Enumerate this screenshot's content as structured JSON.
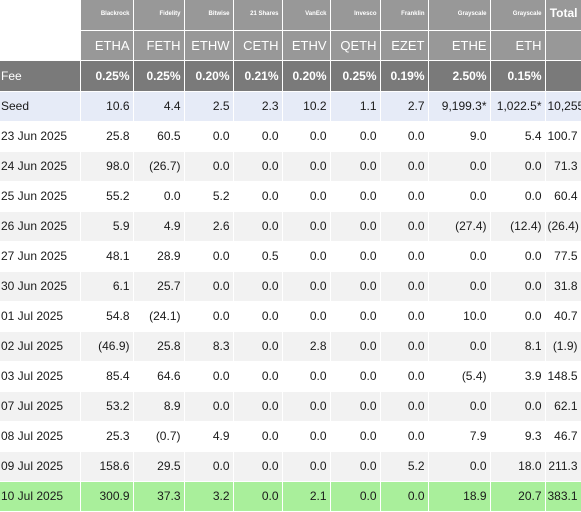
{
  "issuers": [
    "Blackrock",
    "Fidelity",
    "Bitwise",
    "21 Shares",
    "VanEck",
    "Invesco",
    "Franklin",
    "Grayscale",
    "Grayscale"
  ],
  "total_label": "Total",
  "tickers": [
    "ETHA",
    "FETH",
    "ETHW",
    "CETH",
    "ETHV",
    "QETH",
    "EZET",
    "ETHE",
    "ETH"
  ],
  "fee": {
    "label": "Fee",
    "values": [
      "0.25%",
      "0.25%",
      "0.20%",
      "0.21%",
      "0.20%",
      "0.25%",
      "0.19%",
      "2.50%",
      "0.15%"
    ]
  },
  "rows": [
    {
      "date": "Seed",
      "cells": [
        "10.6",
        "4.4",
        "2.5",
        "2.3",
        "10.2",
        "1.1",
        "2.7",
        "9,199.3*",
        "1,022.5*",
        "10,255"
      ]
    },
    {
      "date": "23 Jun 2025",
      "cells": [
        "25.8",
        "60.5",
        "0.0",
        "0.0",
        "0.0",
        "0.0",
        "0.0",
        "9.0",
        "5.4",
        "100.7"
      ]
    },
    {
      "date": "24 Jun 2025",
      "cells": [
        "98.0",
        "(26.7)",
        "0.0",
        "0.0",
        "0.0",
        "0.0",
        "0.0",
        "0.0",
        "0.0",
        "71.3"
      ]
    },
    {
      "date": "25 Jun 2025",
      "cells": [
        "55.2",
        "0.0",
        "5.2",
        "0.0",
        "0.0",
        "0.0",
        "0.0",
        "0.0",
        "0.0",
        "60.4"
      ]
    },
    {
      "date": "26 Jun 2025",
      "cells": [
        "5.9",
        "4.9",
        "2.6",
        "0.0",
        "0.0",
        "0.0",
        "0.0",
        "(27.4)",
        "(12.4)",
        "(26.4)"
      ]
    },
    {
      "date": "27 Jun 2025",
      "cells": [
        "48.1",
        "28.9",
        "0.0",
        "0.5",
        "0.0",
        "0.0",
        "0.0",
        "0.0",
        "0.0",
        "77.5"
      ]
    },
    {
      "date": "30 Jun 2025",
      "cells": [
        "6.1",
        "25.7",
        "0.0",
        "0.0",
        "0.0",
        "0.0",
        "0.0",
        "0.0",
        "0.0",
        "31.8"
      ]
    },
    {
      "date": "01 Jul 2025",
      "cells": [
        "54.8",
        "(24.1)",
        "0.0",
        "0.0",
        "0.0",
        "0.0",
        "0.0",
        "10.0",
        "0.0",
        "40.7"
      ]
    },
    {
      "date": "02 Jul 2025",
      "cells": [
        "(46.9)",
        "25.8",
        "8.3",
        "0.0",
        "2.8",
        "0.0",
        "0.0",
        "0.0",
        "8.1",
        "(1.9)"
      ]
    },
    {
      "date": "03 Jul 2025",
      "cells": [
        "85.4",
        "64.6",
        "0.0",
        "0.0",
        "0.0",
        "0.0",
        "0.0",
        "(5.4)",
        "3.9",
        "148.5"
      ]
    },
    {
      "date": "07 Jul 2025",
      "cells": [
        "53.2",
        "8.9",
        "0.0",
        "0.0",
        "0.0",
        "0.0",
        "0.0",
        "0.0",
        "0.0",
        "62.1"
      ]
    },
    {
      "date": "08 Jul 2025",
      "cells": [
        "25.3",
        "(0.7)",
        "4.9",
        "0.0",
        "0.0",
        "0.0",
        "0.0",
        "7.9",
        "9.3",
        "46.7"
      ]
    },
    {
      "date": "09 Jul 2025",
      "cells": [
        "158.6",
        "29.5",
        "0.0",
        "0.0",
        "0.0",
        "0.0",
        "5.2",
        "0.0",
        "18.0",
        "211.3"
      ]
    },
    {
      "date": "10 Jul 2025",
      "cells": [
        "300.9",
        "37.3",
        "3.2",
        "0.0",
        "2.1",
        "0.0",
        "0.0",
        "18.9",
        "20.7",
        "383.1"
      ]
    }
  ],
  "colors": {
    "header_bg": "#989898",
    "fee_bg": "#7a7a7a",
    "seed_bg": "#e6ebf7",
    "alt_bg": "#f2f2f2",
    "latest_bg": "#a9ef9b",
    "negative": "#e01010"
  }
}
